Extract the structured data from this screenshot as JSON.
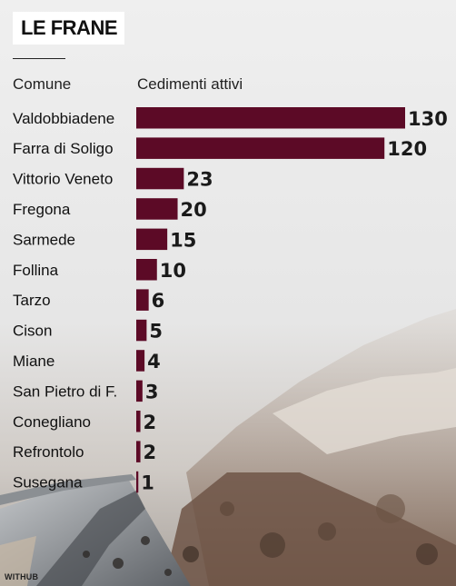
{
  "title": "LE FRANE",
  "credit": "WITHUB",
  "colors": {
    "bar": "#5c0a26",
    "label": "#111111",
    "value": "#1a1a1a"
  },
  "chart_data": {
    "type": "bar",
    "orientation": "horizontal",
    "category_header": "Comune",
    "value_header": "Cedimenti attivi",
    "categories": [
      "Valdobbiadene",
      "Farra di Soligo",
      "Vittorio Veneto",
      "Fregona",
      "Sarmede",
      "Follina",
      "Tarzo",
      "Cison",
      "Miane",
      "San Pietro di F.",
      "Conegliano",
      "Refrontolo",
      "Susegana"
    ],
    "values": [
      130,
      120,
      23,
      20,
      15,
      10,
      6,
      5,
      4,
      3,
      2,
      2,
      1
    ],
    "xlim": [
      0,
      130
    ],
    "grid": false
  }
}
